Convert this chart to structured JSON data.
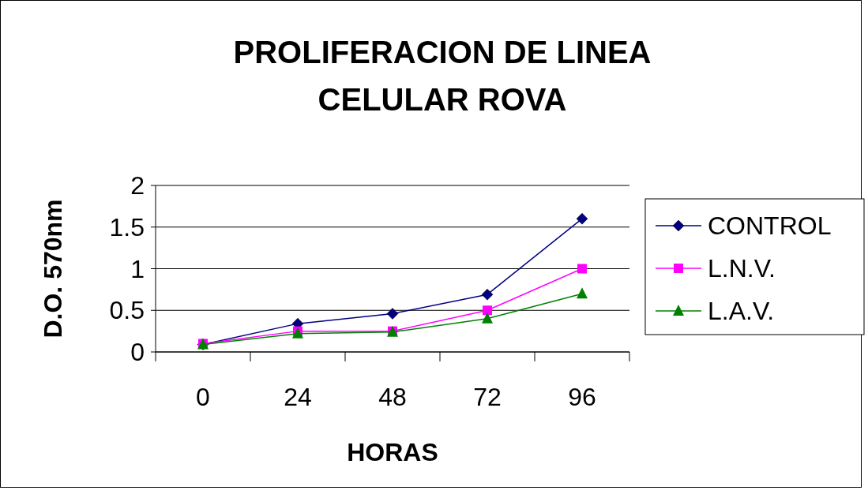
{
  "chart_data": {
    "type": "line",
    "title": "PROLIFERACION DE LINEA CELULAR ROVA",
    "xlabel": "HORAS",
    "ylabel": "D.O. 570nm",
    "categories": [
      "0",
      "24",
      "48",
      "72",
      "96"
    ],
    "series": [
      {
        "name": "CONTROL",
        "color": "#000080",
        "marker": "diamond",
        "values": [
          0.09,
          0.34,
          0.46,
          0.69,
          1.6
        ]
      },
      {
        "name": "L.N.V.",
        "color": "#ff00ff",
        "marker": "square",
        "values": [
          0.1,
          0.25,
          0.25,
          0.5,
          1.0
        ]
      },
      {
        "name": "L.A.V.",
        "color": "#008000",
        "marker": "triangle",
        "values": [
          0.09,
          0.22,
          0.24,
          0.4,
          0.7
        ]
      }
    ],
    "ylim": [
      0,
      2
    ],
    "yticks": [
      0,
      0.5,
      1,
      1.5,
      2
    ],
    "grid": "y",
    "legend": "right"
  }
}
